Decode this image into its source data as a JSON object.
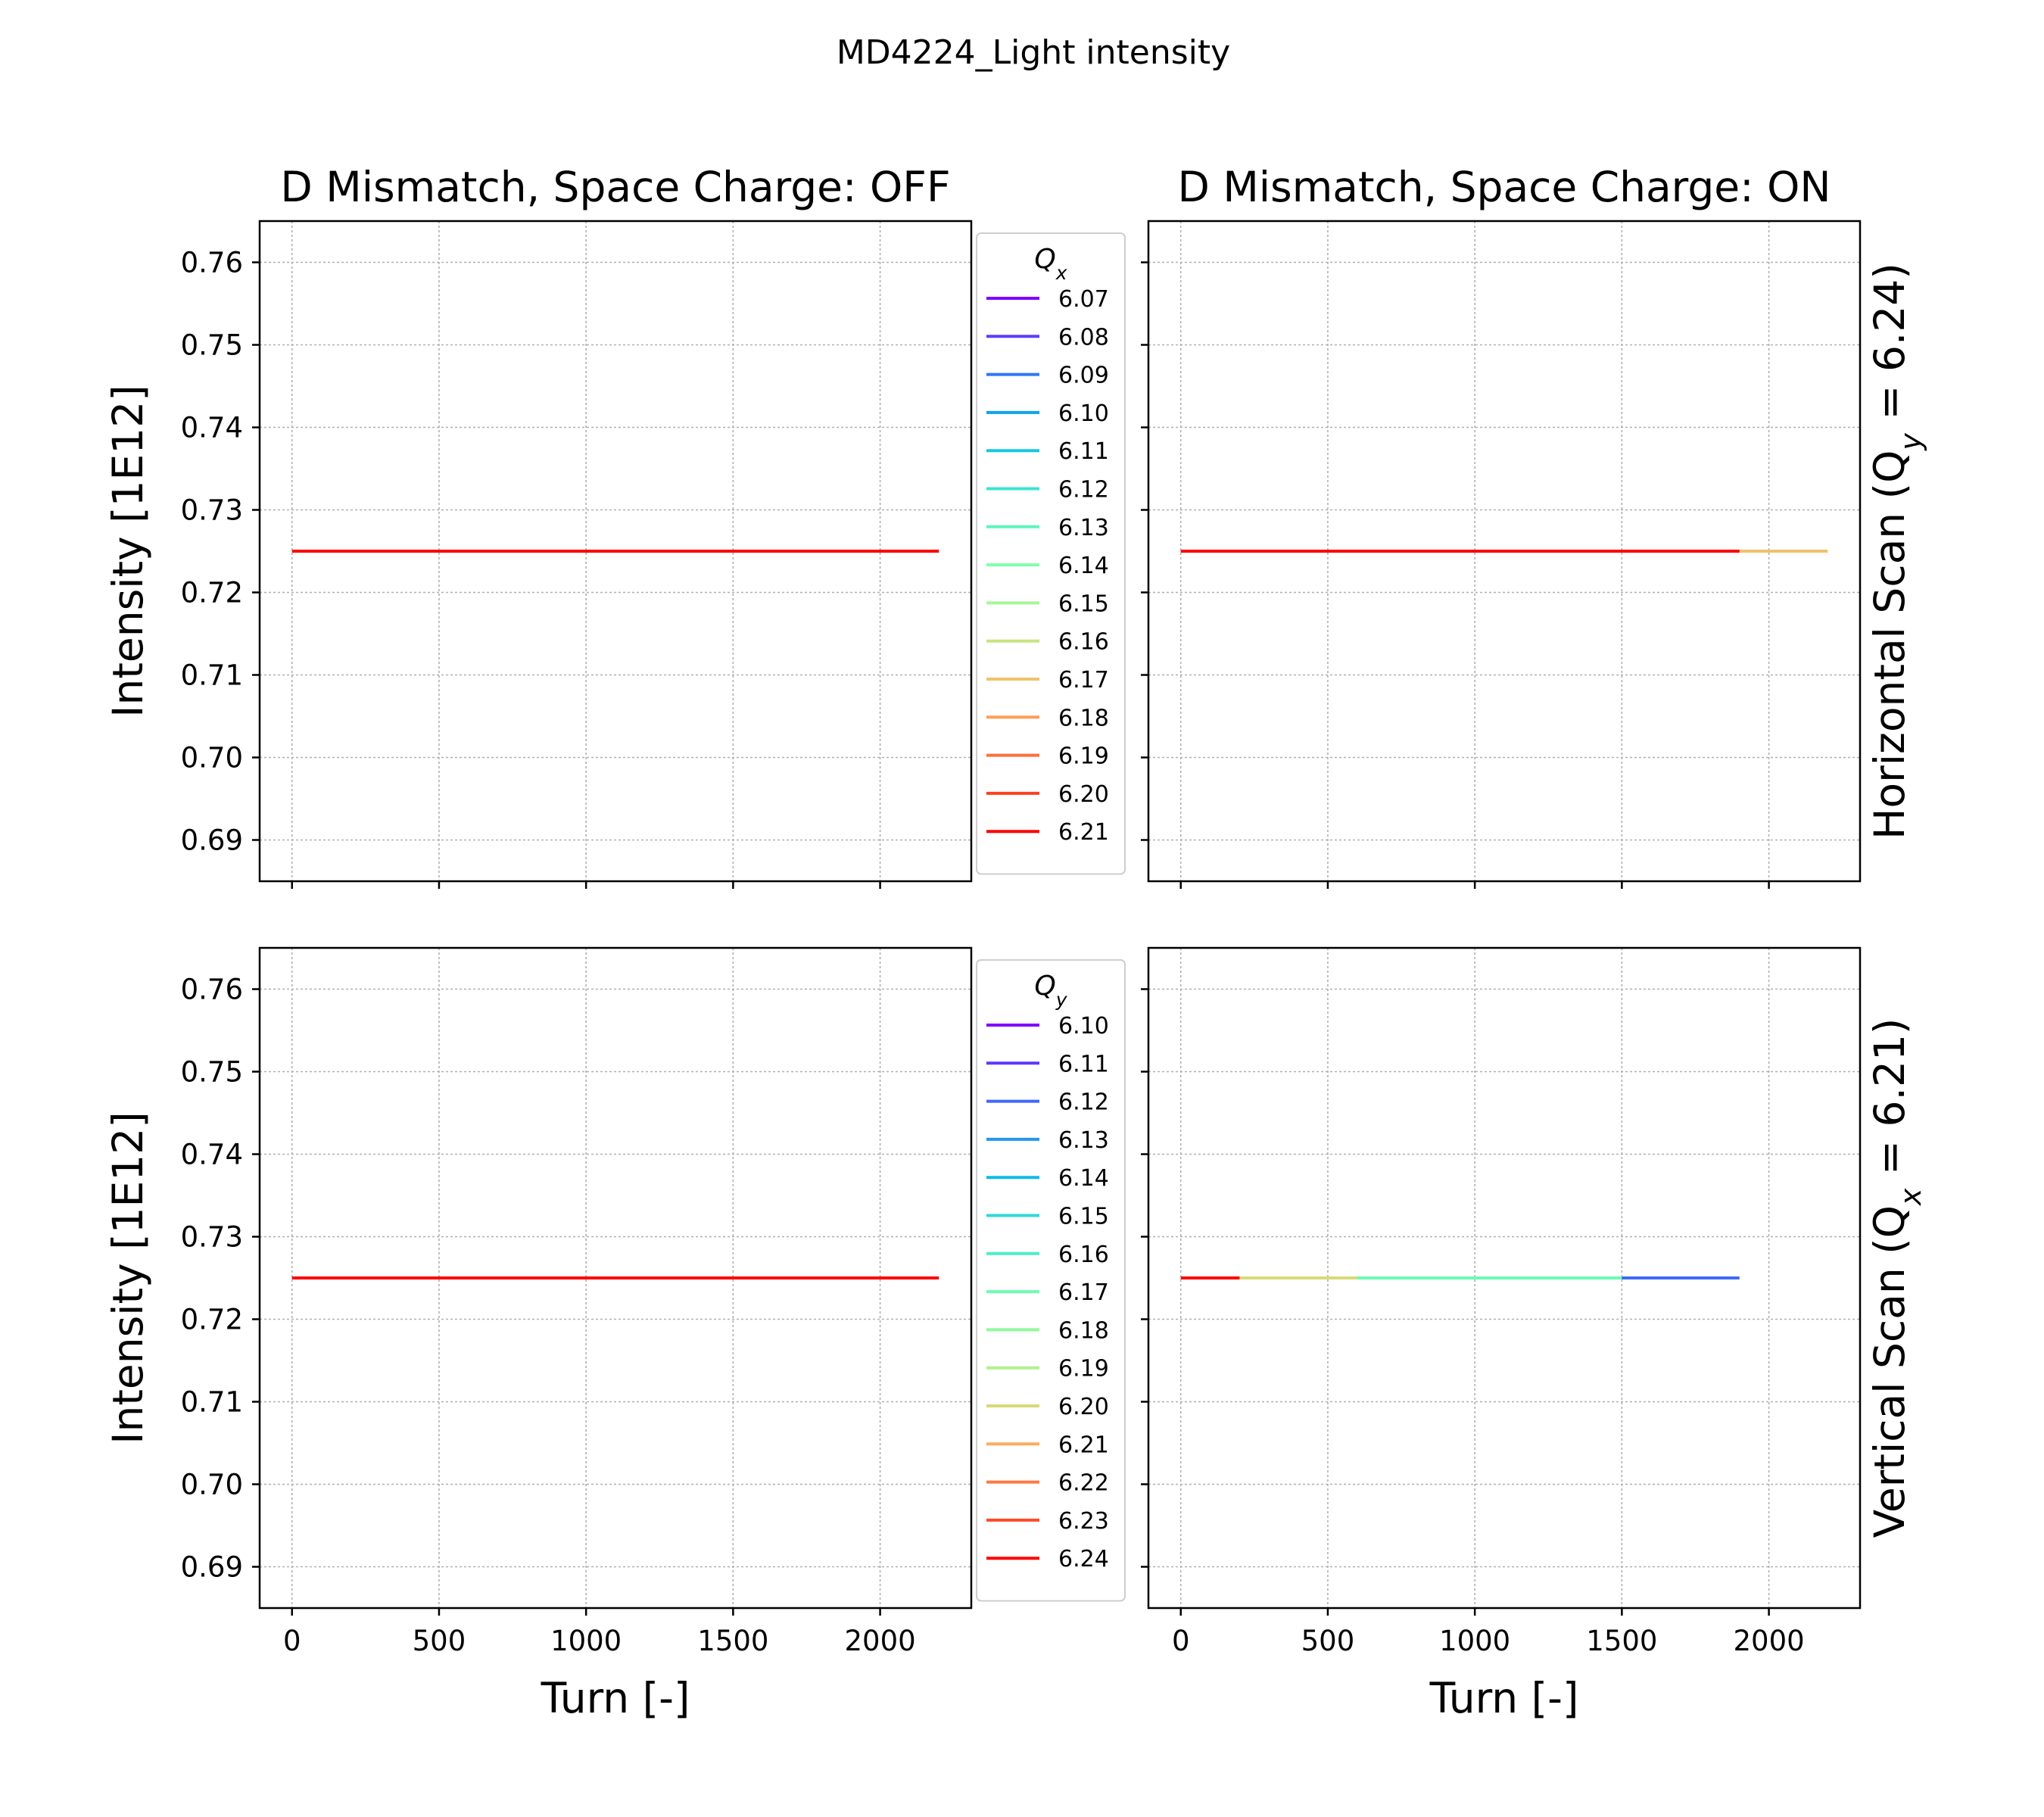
{
  "figure_title": "MD4224_Light intensity",
  "colors": {
    "text": "#000000",
    "grid": "#b0b0b0",
    "legend_border": "#cccccc",
    "red_series": "#ff0000"
  },
  "chart_data": [
    {
      "type": "line",
      "title": "D Mismatch, Space Charge: OFF",
      "row_label": "",
      "xlabel": "",
      "ylabel": "Intensity [1E12]",
      "xlim": [
        -110,
        2310
      ],
      "ylim": [
        0.685,
        0.765
      ],
      "xticks": [
        0,
        500,
        1000,
        1500,
        2000
      ],
      "xtick_labels": [],
      "yticks": [
        0.69,
        0.7,
        0.71,
        0.72,
        0.73,
        0.74,
        0.75,
        0.76
      ],
      "ytick_labels": [
        "0.69",
        "0.70",
        "0.71",
        "0.72",
        "0.73",
        "0.74",
        "0.75",
        "0.76"
      ],
      "grid": true,
      "legend": {
        "title_main": "Q",
        "title_sub": "x",
        "placement": "outside-right",
        "entries": [
          {
            "label": "6.07",
            "color": "#8000ff"
          },
          {
            "label": "6.08",
            "color": "#5a3ffd"
          },
          {
            "label": "6.09",
            "color": "#3176f8"
          },
          {
            "label": "6.10",
            "color": "#0ea3ee"
          },
          {
            "label": "6.11",
            "color": "#17c8df"
          },
          {
            "label": "6.12",
            "color": "#3ae4d0"
          },
          {
            "label": "6.13",
            "color": "#5ef6bd"
          },
          {
            "label": "6.14",
            "color": "#80feac"
          },
          {
            "label": "6.15",
            "color": "#a4f895"
          },
          {
            "label": "6.16",
            "color": "#c8e480"
          },
          {
            "label": "6.17",
            "color": "#f1c16a"
          },
          {
            "label": "6.18",
            "color": "#ff9d55"
          },
          {
            "label": "6.19",
            "color": "#ff6e3e"
          },
          {
            "label": "6.20",
            "color": "#ff3f21"
          },
          {
            "label": "6.21",
            "color": "#ff0000"
          }
        ]
      },
      "series": [
        {
          "label": "6.21",
          "color": "#ff0000",
          "x": [
            0,
            2200
          ],
          "y": [
            0.725,
            0.725
          ]
        }
      ]
    },
    {
      "type": "line",
      "title": "D Mismatch, Space Charge: ON",
      "row_label": "Horizontal Scan (Q",
      "row_label_sub": "y",
      "row_label_end": " = 6.24)",
      "xlabel": "",
      "ylabel": "",
      "xlim": [
        -110,
        2310
      ],
      "ylim": [
        0.685,
        0.765
      ],
      "xticks": [
        0,
        500,
        1000,
        1500,
        2000
      ],
      "xtick_labels": [],
      "yticks": [
        0.69,
        0.7,
        0.71,
        0.72,
        0.73,
        0.74,
        0.75,
        0.76
      ],
      "ytick_labels": [],
      "grid": true,
      "legend": null,
      "series": [
        {
          "label": "6.17",
          "color": "#f1c16a",
          "x": [
            0,
            2200
          ],
          "y": [
            0.725,
            0.725
          ]
        },
        {
          "label": "6.21",
          "color": "#ff0000",
          "x": [
            0,
            1900
          ],
          "y": [
            0.725,
            0.725
          ]
        }
      ]
    },
    {
      "type": "line",
      "title": "",
      "row_label": "",
      "xlabel": "Turn [-]",
      "ylabel": "Intensity [1E12]",
      "xlim": [
        -110,
        2310
      ],
      "ylim": [
        0.685,
        0.765
      ],
      "xticks": [
        0,
        500,
        1000,
        1500,
        2000
      ],
      "xtick_labels": [
        "0",
        "500",
        "1000",
        "1500",
        "2000"
      ],
      "yticks": [
        0.69,
        0.7,
        0.71,
        0.72,
        0.73,
        0.74,
        0.75,
        0.76
      ],
      "ytick_labels": [
        "0.69",
        "0.70",
        "0.71",
        "0.72",
        "0.73",
        "0.74",
        "0.75",
        "0.76"
      ],
      "grid": true,
      "legend": {
        "title_main": "Q",
        "title_sub": "y",
        "placement": "outside-right",
        "entries": [
          {
            "label": "6.10",
            "color": "#8000ff"
          },
          {
            "label": "6.11",
            "color": "#6136fd"
          },
          {
            "label": "6.12",
            "color": "#4068fa"
          },
          {
            "label": "6.13",
            "color": "#2196f3"
          },
          {
            "label": "6.14",
            "color": "#0ebbe8"
          },
          {
            "label": "6.15",
            "color": "#2cd9d8"
          },
          {
            "label": "6.16",
            "color": "#4cefc6"
          },
          {
            "label": "6.17",
            "color": "#6dfbb2"
          },
          {
            "label": "6.18",
            "color": "#8efa9c"
          },
          {
            "label": "6.19",
            "color": "#b0f28d"
          },
          {
            "label": "6.20",
            "color": "#d7d978"
          },
          {
            "label": "6.21",
            "color": "#ffaa5e"
          },
          {
            "label": "6.22",
            "color": "#ff7a43"
          },
          {
            "label": "6.23",
            "color": "#ff4a27"
          },
          {
            "label": "6.24",
            "color": "#ff0000"
          }
        ]
      },
      "series": [
        {
          "label": "6.24",
          "color": "#ff0000",
          "x": [
            0,
            2200
          ],
          "y": [
            0.725,
            0.725
          ]
        }
      ]
    },
    {
      "type": "line",
      "title": "",
      "row_label": "Vertical Scan (Q",
      "row_label_sub": "x",
      "row_label_end": " = 6.21)",
      "xlabel": "Turn [-]",
      "ylabel": "",
      "xlim": [
        -110,
        2310
      ],
      "ylim": [
        0.685,
        0.765
      ],
      "xticks": [
        0,
        500,
        1000,
        1500,
        2000
      ],
      "xtick_labels": [
        "0",
        "500",
        "1000",
        "1500",
        "2000"
      ],
      "yticks": [
        0.69,
        0.7,
        0.71,
        0.72,
        0.73,
        0.74,
        0.75,
        0.76
      ],
      "ytick_labels": [],
      "grid": true,
      "legend": null,
      "series": [
        {
          "label": "6.12",
          "color": "#4068fa",
          "x": [
            0,
            1900
          ],
          "y": [
            0.725,
            0.725
          ]
        },
        {
          "label": "6.17",
          "color": "#6dfbb2",
          "x": [
            0,
            1500
          ],
          "y": [
            0.725,
            0.725
          ]
        },
        {
          "label": "6.20",
          "color": "#d7d978",
          "x": [
            0,
            600
          ],
          "y": [
            0.725,
            0.725
          ]
        },
        {
          "label": "6.24",
          "color": "#ff0000",
          "x": [
            0,
            200
          ],
          "y": [
            0.725,
            0.725
          ]
        }
      ]
    }
  ]
}
